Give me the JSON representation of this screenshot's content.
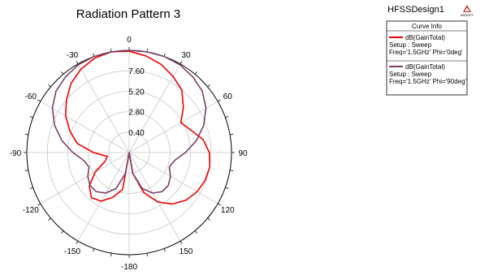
{
  "app": {
    "design_name": "HFSSDesign1",
    "logo_text": "ANSOFT"
  },
  "chart_data": {
    "type": "polar",
    "title": "Radiation Pattern 3",
    "angle_ticks": [
      0,
      30,
      60,
      90,
      120,
      150,
      -180,
      -150,
      -120,
      -90,
      -60,
      -30
    ],
    "angle_tick_labels": [
      "0",
      "30",
      "60",
      "90",
      "120",
      "150",
      "-180",
      "-150",
      "-120",
      "-90",
      "-60",
      "-30"
    ],
    "radial_ticks": [
      0.4,
      2.8,
      5.2,
      7.6
    ],
    "radial_tick_labels": [
      "0.40",
      "2.80",
      "5.20",
      "7.60"
    ],
    "r_range": [
      -2.0,
      10.0
    ],
    "grid": true,
    "legend_placement": "top-right",
    "legend_title": "Curve Info",
    "series": [
      {
        "name": "dB(GainTotal)",
        "legend_lines": [
          "dB(GainTotal)",
          "Setup : Sweep",
          "Freq='1.5GHz' Phi='0deg'"
        ],
        "color": "#ee0000",
        "theta": [
          -180,
          -170,
          -160,
          -150,
          -140,
          -130,
          -120,
          -110,
          -100,
          -90,
          -80,
          -70,
          -60,
          -50,
          -40,
          -30,
          -20,
          -10,
          0,
          10,
          20,
          30,
          40,
          50,
          60,
          70,
          80,
          90,
          100,
          110,
          120,
          130,
          140,
          150,
          160,
          170,
          180
        ],
        "values": [
          -2.0,
          2.4,
          3.6,
          4.6,
          4.9,
          4.1,
          2.6,
          1.0,
          0.6,
          2.2,
          4.2,
          5.4,
          6.6,
          7.6,
          8.6,
          9.3,
          9.8,
          10.0,
          9.9,
          9.5,
          9.0,
          8.3,
          7.6,
          6.3,
          5.0,
          5.7,
          6.8,
          7.4,
          7.6,
          7.5,
          7.2,
          6.7,
          5.9,
          4.7,
          3.0,
          0.5,
          -2.0
        ]
      },
      {
        "name": "dB(GainTotal)",
        "legend_lines": [
          "dB(GainTotal)",
          "Setup : Sweep",
          "Freq='1.5GHz' Phi='90deg'"
        ],
        "color": "#7b3f68",
        "theta": [
          -180,
          -170,
          -160,
          -150,
          -140,
          -130,
          -120,
          -110,
          -100,
          -90,
          -80,
          -70,
          -60,
          -50,
          -40,
          -30,
          -20,
          -10,
          0,
          10,
          20,
          30,
          40,
          50,
          60,
          70,
          80,
          90,
          100,
          110,
          120,
          130,
          140,
          150,
          160,
          170,
          180
        ],
        "values": [
          -2.0,
          0.5,
          2.5,
          3.5,
          4.0,
          4.0,
          3.6,
          3.0,
          3.4,
          4.6,
          6.0,
          7.3,
          8.4,
          9.2,
          9.6,
          9.9,
          10.0,
          10.0,
          10.0,
          10.0,
          10.0,
          9.9,
          9.6,
          9.2,
          8.4,
          7.3,
          6.0,
          4.6,
          3.4,
          3.0,
          3.6,
          4.0,
          4.0,
          3.5,
          2.5,
          0.5,
          -2.0
        ]
      }
    ]
  }
}
